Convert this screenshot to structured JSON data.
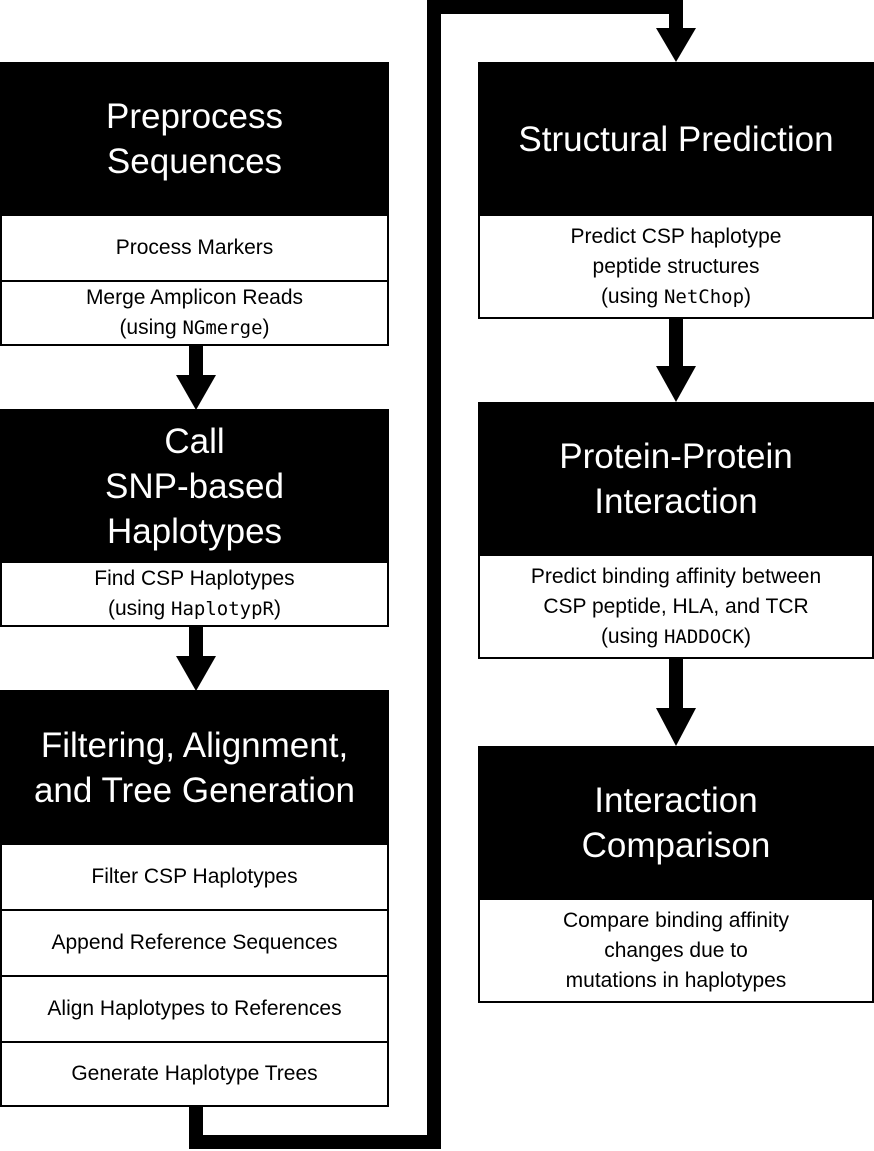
{
  "left_column": {
    "preprocess": {
      "title_lines": [
        "Preprocess",
        "Sequences"
      ],
      "steps": [
        {
          "text": "Process Markers"
        },
        {
          "text": "Merge Amplicon Reads",
          "pre": "(using ",
          "tool": "NGmerge",
          "post": ")"
        }
      ]
    },
    "call_haplotypes": {
      "title_lines": [
        "Call",
        "SNP-based",
        "Haplotypes"
      ],
      "steps": [
        {
          "text": "Find CSP Haplotypes",
          "pre": "(using ",
          "tool": "HaplotypR",
          "post": ")"
        }
      ]
    },
    "filtering": {
      "title_lines": [
        "Filtering, Alignment,",
        "and Tree Generation"
      ],
      "steps": [
        {
          "text": "Filter CSP Haplotypes"
        },
        {
          "text": "Append Reference Sequences"
        },
        {
          "text": "Align Haplotypes to References"
        },
        {
          "text": "Generate Haplotype Trees"
        }
      ]
    }
  },
  "right_column": {
    "structural": {
      "title_lines": [
        "Structural Prediction"
      ],
      "steps": [
        {
          "lines": [
            "Predict CSP haplotype",
            "peptide structures"
          ],
          "pre": "(using ",
          "tool": "NetChop",
          "post": ")"
        }
      ]
    },
    "ppi": {
      "title_lines": [
        "Protein-Protein",
        "Interaction"
      ],
      "steps": [
        {
          "lines": [
            "Predict binding affinity between",
            "CSP peptide, HLA, and TCR"
          ],
          "pre": "(using ",
          "tool": "HADDOCK",
          "post": ")"
        }
      ]
    },
    "comparison": {
      "title_lines": [
        "Interaction",
        "Comparison"
      ],
      "steps": [
        {
          "lines": [
            "Compare binding affinity",
            "changes due to",
            "mutations in haplotypes"
          ]
        }
      ]
    }
  }
}
